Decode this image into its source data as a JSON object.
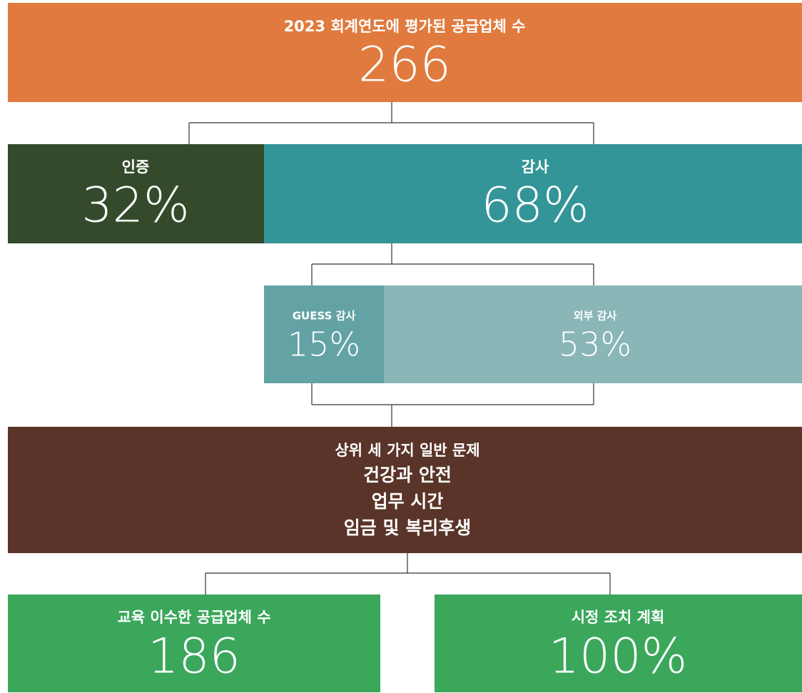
{
  "top": {
    "label": "2023 회계연도에 평가된 공급업체 수",
    "value": "266"
  },
  "split": [
    {
      "label": "인증",
      "value": "32%"
    },
    {
      "label": "감사",
      "value": "68%"
    }
  ],
  "audits": [
    {
      "label": "GUESS 감사",
      "value": "15%"
    },
    {
      "label": "외부 감사",
      "value": "53%"
    }
  ],
  "issues": {
    "title": "상위 세 가지 일반 문제",
    "items": [
      "건강과 안전",
      "업무 시간",
      "임금 및 복리후생"
    ]
  },
  "outcomes": [
    {
      "label": "교육 이수한 공급업체 수",
      "value": "186"
    },
    {
      "label": "시정 조치 계획",
      "value": "100%"
    }
  ]
}
